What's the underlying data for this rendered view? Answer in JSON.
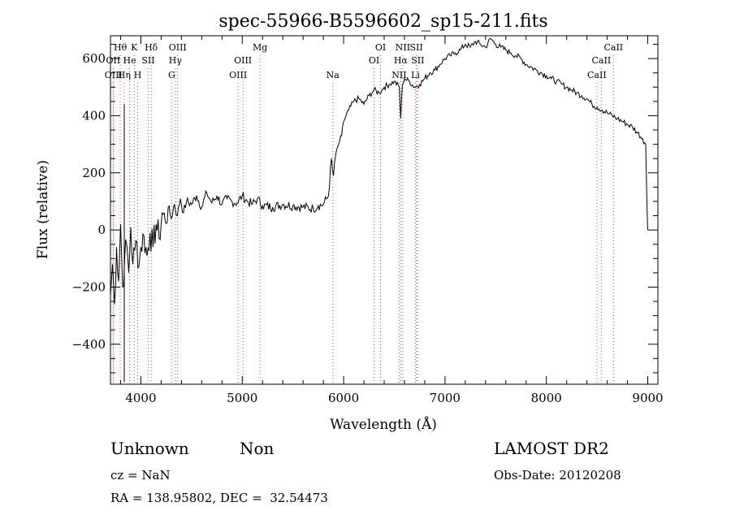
{
  "chart_data": {
    "type": "line",
    "title": "spec-55966-B5596602_sp15-211.fits",
    "xlabel": "Wavelength (Å)",
    "ylabel": "Flux (relative)",
    "xlim": [
      3700,
      9100
    ],
    "ylim": [
      -540,
      680
    ],
    "xticks": [
      "4000",
      "5000",
      "6000",
      "7000",
      "8000",
      "9000"
    ],
    "yticks": [
      "−400",
      "−200",
      "0",
      "200",
      "400",
      "600"
    ],
    "grid": false,
    "series": [
      {
        "x": [
          3700,
          3720,
          3740,
          3760,
          3780,
          3800,
          3820,
          3840,
          3860,
          3880,
          3900,
          3920,
          3940,
          3960,
          3980,
          4000,
          4030,
          4060,
          4090,
          4120,
          4150,
          4180,
          4210,
          4240,
          4270,
          4300,
          4330,
          4360,
          4390,
          4420,
          4450,
          4500,
          4550,
          4600,
          4650,
          4700,
          4750,
          4800,
          4850,
          4900,
          4950,
          5000,
          5050,
          5100,
          5150,
          5200,
          5300,
          5400,
          5500,
          5600,
          5700,
          5750,
          5800,
          5850,
          5880,
          5890,
          5900,
          5920,
          5940,
          5960,
          5980,
          6000,
          6050,
          6100,
          6150,
          6200,
          6250,
          6300,
          6350,
          6400,
          6450,
          6500,
          6550,
          6563,
          6580,
          6600,
          6650,
          6700,
          6750,
          6800,
          6850,
          6900,
          6950,
          7000,
          7050,
          7100,
          7150,
          7200,
          7250,
          7300,
          7350,
          7400,
          7450,
          7500,
          7550,
          7600,
          7650,
          7700,
          7750,
          7800,
          7850,
          7900,
          7950,
          8000,
          8050,
          8100,
          8150,
          8200,
          8250,
          8300,
          8350,
          8400,
          8450,
          8500,
          8550,
          8600,
          8650,
          8700,
          8750,
          8800,
          8850,
          8900,
          8950,
          8980,
          8990,
          9000
        ],
        "y": [
          -230,
          -120,
          -260,
          -60,
          -180,
          20,
          -200,
          -100,
          -50,
          -150,
          10,
          -120,
          -70,
          -40,
          -130,
          -60,
          -20,
          -90,
          -10,
          -60,
          20,
          -30,
          60,
          30,
          80,
          40,
          90,
          50,
          110,
          60,
          100,
          90,
          120,
          80,
          130,
          95,
          120,
          90,
          110,
          100,
          95,
          120,
          100,
          90,
          110,
          85,
          80,
          90,
          85,
          80,
          75,
          85,
          90,
          120,
          250,
          210,
          190,
          260,
          290,
          310,
          330,
          380,
          420,
          450,
          460,
          440,
          470,
          490,
          480,
          500,
          510,
          520,
          500,
          390,
          510,
          530,
          520,
          500,
          510,
          530,
          550,
          560,
          580,
          600,
          610,
          620,
          630,
          650,
          640,
          660,
          650,
          640,
          670,
          650,
          640,
          630,
          620,
          610,
          600,
          580,
          570,
          560,
          550,
          540,
          530,
          520,
          510,
          500,
          490,
          480,
          470,
          460,
          440,
          430,
          420,
          410,
          400,
          390,
          380,
          370,
          360,
          340,
          320,
          300,
          120,
          0
        ]
      }
    ],
    "spectral_lines": [
      {
        "label": "Hθ",
        "x": 3797,
        "row": 1
      },
      {
        "label": "OII",
        "x": 3727,
        "row": 2
      },
      {
        "label": "OIII",
        "x": 3730,
        "row": 3
      },
      {
        "label": "K",
        "x": 3934,
        "row": 1
      },
      {
        "label": "He",
        "x": 3889,
        "row": 2
      },
      {
        "label": "Hη",
        "x": 3835,
        "row": 3
      },
      {
        "label": "H",
        "x": 3969,
        "row": 3
      },
      {
        "label": "SII",
        "x": 4072,
        "row": 2
      },
      {
        "label": "Hδ",
        "x": 4102,
        "row": 1
      },
      {
        "label": "OIII",
        "x": 4363,
        "row": 1
      },
      {
        "label": "Hγ",
        "x": 4340,
        "row": 2
      },
      {
        "label": "G",
        "x": 4304,
        "row": 3
      },
      {
        "label": "Mg",
        "x": 5175,
        "row": 1
      },
      {
        "label": "OIII",
        "x": 5007,
        "row": 2
      },
      {
        "label": "OIII",
        "x": 4959,
        "row": 3
      },
      {
        "label": "Na",
        "x": 5893,
        "row": 3
      },
      {
        "label": "OI",
        "x": 6364,
        "row": 1
      },
      {
        "label": "OI",
        "x": 6300,
        "row": 2
      },
      {
        "label": "NII",
        "x": 6584,
        "row": 1
      },
      {
        "label": "SII",
        "x": 6717,
        "row": 1
      },
      {
        "label": "Hα",
        "x": 6563,
        "row": 2
      },
      {
        "label": "SII",
        "x": 6731,
        "row": 2
      },
      {
        "label": "NII",
        "x": 6548,
        "row": 3
      },
      {
        "label": "Li",
        "x": 6708,
        "row": 3
      },
      {
        "label": "CaII",
        "x": 8662,
        "row": 1
      },
      {
        "label": "CaII",
        "x": 8542,
        "row": 2
      },
      {
        "label": "CaII",
        "x": 8498,
        "row": 3
      }
    ]
  },
  "footer": {
    "object_class": "Unknown",
    "subclass": "Non",
    "survey": "LAMOST DR2",
    "redshift": "cz = NaN",
    "obs_date": "Obs-Date: 20120208",
    "coords": "RA = 138.95802, DEC =  32.54473"
  }
}
